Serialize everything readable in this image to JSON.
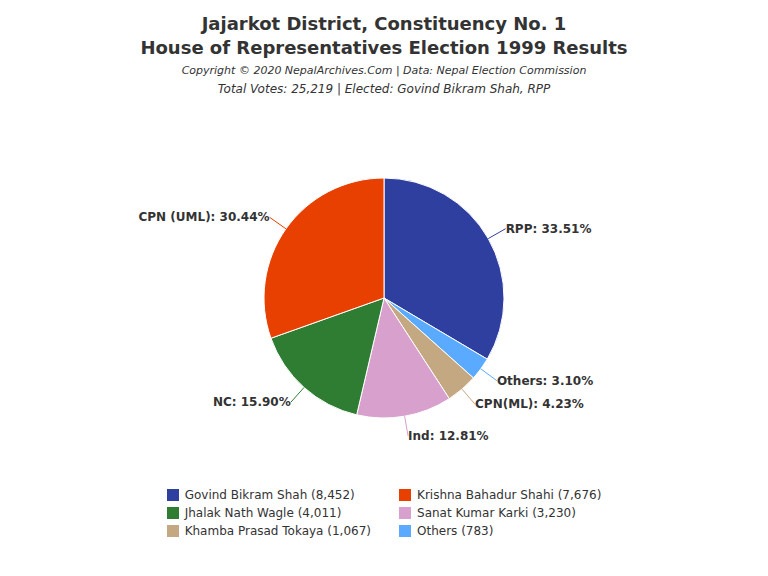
{
  "chart_data": {
    "type": "pie",
    "title": [
      "Jajarkot District, Constituency No. 1",
      "House of Representatives Election 1999 Results"
    ],
    "annotations": [
      "Copyright © 2020 NepalArchives.Com | Data: Nepal Election Commission"
    ],
    "subtitle": "Total Votes: 25,219 | Elected: Govind Bikram Shah, RPP",
    "values": [
      33.51,
      3.1,
      4.23,
      12.81,
      15.9,
      30.44
    ],
    "value_labels": [
      "RPP: 33.51%",
      "Others: 3.10%",
      "CPN(ML): 4.23%",
      "Ind: 12.81%",
      "NC: 15.90%",
      "CPN (UML): 30.44%"
    ],
    "colors": [
      "#2E3FA0",
      "#5AABFF",
      "#C4A882",
      "#D8A0CC",
      "#2E7D32",
      "#E84000"
    ],
    "data_labels": true,
    "legend": "bottom",
    "legend_entries": [
      {
        "name": "Govind Bikram Shah (8,452)",
        "color": "#2E3FA0"
      },
      {
        "name": "Jhalak Nath Wagle (4,011)",
        "color": "#2E7D32"
      },
      {
        "name": "Khamba Prasad Tokaya (1,067)",
        "color": "#C4A882"
      },
      {
        "name": "Krishna Bahadur Shahi (7,676)",
        "color": "#E84000"
      },
      {
        "name": "Sanat Kumar Karki (3,230)",
        "color": "#D8A0CC"
      },
      {
        "name": "Others (783)",
        "color": "#5AABFF"
      }
    ]
  }
}
